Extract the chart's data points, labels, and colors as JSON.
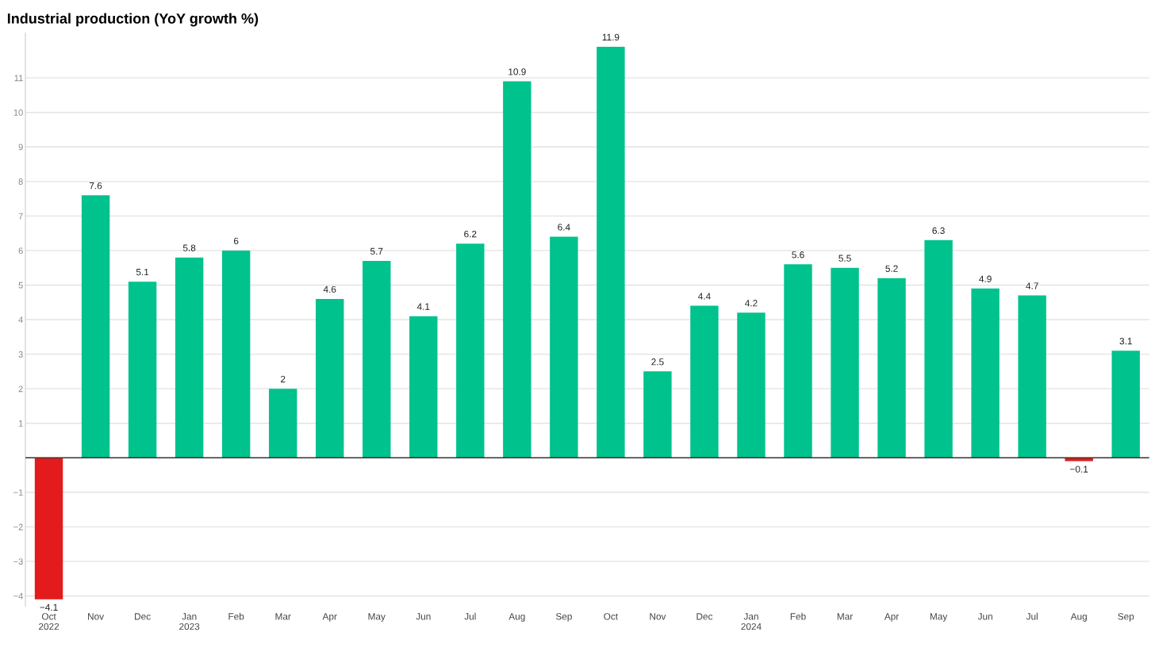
{
  "chart_data": {
    "type": "bar",
    "title": "Industrial production (YoY growth %)",
    "categories": [
      "Oct\n2022",
      "Nov",
      "Dec",
      "Jan\n2023",
      "Feb",
      "Mar",
      "Apr",
      "May",
      "Jun",
      "Jul",
      "Aug",
      "Sep",
      "Oct",
      "Nov",
      "Dec",
      "Jan\n2024",
      "Feb",
      "Mar",
      "Apr",
      "May",
      "Jun",
      "Jul",
      "Aug",
      "Sep"
    ],
    "values": [
      -4.1,
      7.6,
      5.1,
      5.8,
      6,
      2,
      4.6,
      5.7,
      4.1,
      6.2,
      10.9,
      6.4,
      11.9,
      2.5,
      4.4,
      4.2,
      5.6,
      5.5,
      5.2,
      6.3,
      4.9,
      4.7,
      -0.1,
      3.1
    ],
    "colors": [
      "#e31b1c",
      "#00c28c",
      "#00c28c",
      "#00c28c",
      "#00c28c",
      "#00c28c",
      "#00c28c",
      "#00c28c",
      "#00c28c",
      "#00c28c",
      "#00c28c",
      "#00c28c",
      "#00c28c",
      "#00c28c",
      "#00c28c",
      "#00c28c",
      "#00c28c",
      "#00c28c",
      "#00c28c",
      "#00c28c",
      "#00c28c",
      "#00c28c",
      "#e31b1c",
      "#00c28c"
    ],
    "ylim": [
      -4.3,
      12.3
    ],
    "yticks": [
      {
        "value": -4,
        "label": "−4"
      },
      {
        "value": -3,
        "label": "−3"
      },
      {
        "value": -2,
        "label": "−2"
      },
      {
        "value": -1,
        "label": "−1"
      },
      1,
      2,
      3,
      4,
      5,
      6,
      7,
      8,
      9,
      10,
      11
    ],
    "grid": "y",
    "data_labels": true
  }
}
